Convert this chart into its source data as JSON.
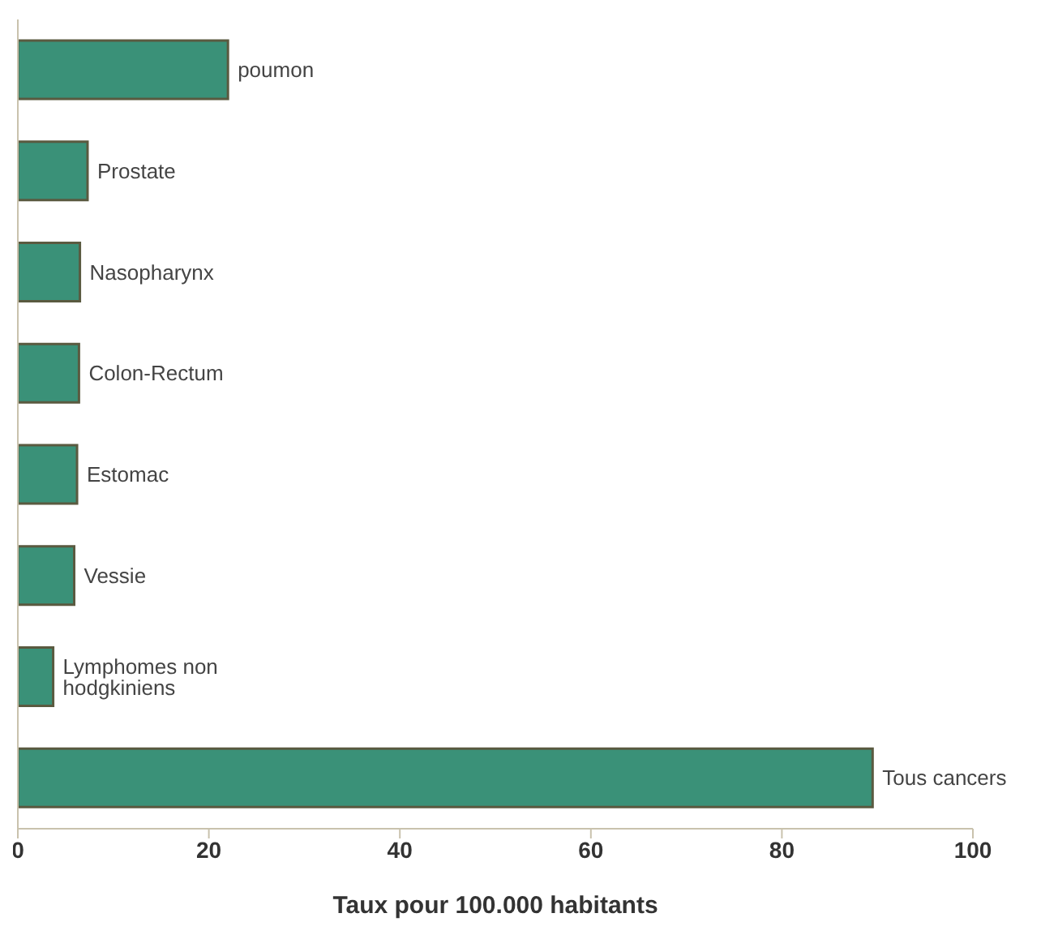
{
  "chart_data": {
    "type": "bar",
    "orientation": "horizontal",
    "xlabel": "Taux pour 100.000 habitants",
    "categories": [
      "poumon",
      "Prostate",
      "Nasopharynx",
      "Colon-Rectum",
      "Estomac",
      "Vessie",
      "Lymphomes non hodgkiniens",
      "Tous cancers"
    ],
    "values": [
      22,
      7.3,
      6.5,
      6.4,
      6.2,
      5.9,
      3.7,
      89.5
    ],
    "color": "#3a9178",
    "xlim": [
      0,
      100
    ],
    "xticks": [
      0,
      20,
      40,
      60,
      80,
      100
    ],
    "grid": false
  }
}
